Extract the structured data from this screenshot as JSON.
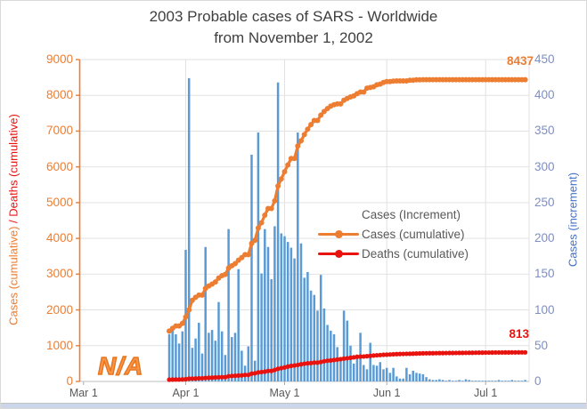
{
  "widget": {
    "background": "#FFFFFF",
    "border_color": "#D9D9D9",
    "bottom_edge_color": "#CCD6EA"
  },
  "chart_data": {
    "type": "bar",
    "title_line1": "2003 Probable cases of SARS - Worldwide",
    "title_line2": "from November 1, 2002",
    "left_axis": {
      "title_cases": "Cases (cumulative)",
      "title_separator": " / ",
      "title_deaths": "Deaths (cumulative)",
      "min": 0,
      "max": 9000,
      "ticks": [
        0,
        1000,
        2000,
        3000,
        4000,
        5000,
        6000,
        7000,
        8000,
        9000
      ],
      "tick_color": "#ED7D31"
    },
    "right_axis": {
      "title": "Cases (increment)",
      "min": 0,
      "max": 450,
      "ticks": [
        0,
        50,
        100,
        150,
        200,
        250,
        300,
        350,
        400,
        450
      ],
      "tick_color": "#7E8EC4",
      "title_color": "#4472C4"
    },
    "x_axis": {
      "tick_labels": [
        "Mar 1",
        "Apr 1",
        "May 1",
        "Jun 1",
        "Jul 1"
      ],
      "ticks": [
        {
          "label": "Mar 1",
          "day": -26,
          "grid": false
        },
        {
          "label": "Apr 1",
          "day": 5,
          "grid": true
        },
        {
          "label": "May 1",
          "day": 35,
          "grid": true
        },
        {
          "label": "Jun 1",
          "day": 66,
          "grid": true
        },
        {
          "label": "Jul 1",
          "day": 96,
          "grid": true
        }
      ]
    },
    "grid_color": "#E2E2E2",
    "dates": [
      "Mar 27",
      "Mar 28",
      "Mar 29",
      "Mar 30",
      "Mar 31",
      "Apr 1",
      "Apr 2",
      "Apr 3",
      "Apr 4",
      "Apr 5",
      "Apr 6",
      "Apr 7",
      "Apr 8",
      "Apr 9",
      "Apr 10",
      "Apr 11",
      "Apr 12",
      "Apr 13",
      "Apr 14",
      "Apr 15",
      "Apr 16",
      "Apr 17",
      "Apr 18",
      "Apr 19",
      "Apr 20",
      "Apr 21",
      "Apr 22",
      "Apr 23",
      "Apr 24",
      "Apr 25",
      "Apr 26",
      "Apr 27",
      "Apr 28",
      "Apr 29",
      "Apr 30",
      "May 1",
      "May 2",
      "May 3",
      "May 4",
      "May 5",
      "May 6",
      "May 7",
      "May 8",
      "May 9",
      "May 10",
      "May 11",
      "May 12",
      "May 13",
      "May 14",
      "May 15",
      "May 16",
      "May 17",
      "May 18",
      "May 19",
      "May 20",
      "May 21",
      "May 22",
      "May 23",
      "May 24",
      "May 25",
      "May 26",
      "May 27",
      "May 28",
      "May 29",
      "May 30",
      "May 31",
      "Jun 1",
      "Jun 2",
      "Jun 3",
      "Jun 4",
      "Jun 5",
      "Jun 6",
      "Jun 7",
      "Jun 8",
      "Jun 9",
      "Jun 10",
      "Jun 11",
      "Jun 12",
      "Jun 13",
      "Jun 14",
      "Jun 15",
      "Jun 16",
      "Jun 17",
      "Jun 18",
      "Jun 19",
      "Jun 20",
      "Jun 21",
      "Jun 22",
      "Jun 23",
      "Jun 24",
      "Jun 25",
      "Jun 26",
      "Jun 27",
      "Jun 28",
      "Jun 29",
      "Jun 30",
      "Jul 1",
      "Jul 2",
      "Jul 3",
      "Jul 4",
      "Jul 5",
      "Jul 6",
      "Jul 7",
      "Jul 8",
      "Jul 9",
      "Jul 10",
      "Jul 11",
      "Jul 12",
      "Jul 13"
    ],
    "series": [
      {
        "name": "Cases (Increment)",
        "kind": "bar",
        "axis": "right",
        "color": "#5B9BD5",
        "values": [
          66,
          76,
          66,
          53,
          70,
          184,
          424,
          47,
          60,
          82,
          39,
          188,
          68,
          72,
          57,
          111,
          70,
          37,
          213,
          62,
          68,
          157,
          43,
          22,
          49,
          317,
          29,
          348,
          151,
          213,
          188,
          143,
          217,
          418,
          207,
          203,
          195,
          187,
          172,
          348,
          193,
          145,
          153,
          127,
          121,
          99,
          149,
          102,
          79,
          71,
          66,
          48,
          31,
          99,
          85,
          50,
          25,
          35,
          68,
          23,
          17,
          54,
          23,
          22,
          27,
          17,
          19,
          12,
          19,
          7,
          4,
          4,
          19,
          10,
          15,
          12,
          11,
          10,
          6,
          3,
          2,
          2,
          3,
          2,
          1,
          2,
          1,
          1,
          2,
          1,
          3,
          2,
          1,
          1,
          1,
          1,
          1,
          1,
          1,
          1,
          2,
          1,
          1,
          1,
          2,
          1,
          1,
          1,
          2
        ]
      },
      {
        "name": "Cases (cumulative)",
        "kind": "line",
        "axis": "left",
        "color": "#ED7D31",
        "end_label": "8437",
        "values": [
          1408,
          1485,
          1550,
          1550,
          1622,
          1804,
          2000,
          2270,
          2353,
          2416,
          2416,
          2601,
          2671,
          2722,
          2781,
          2890,
          2960,
          2992,
          3169,
          3235,
          3293,
          3389,
          3461,
          3547,
          3547,
          3861,
          3947,
          4288,
          4439,
          4649,
          4836,
          4836,
          5050,
          5462,
          5663,
          5865,
          6054,
          6234,
          6234,
          6583,
          6727,
          6903,
          7053,
          7183,
          7296,
          7296,
          7447,
          7548,
          7628,
          7699,
          7739,
          7761,
          7761,
          7864,
          7911,
          7956,
          7983,
          8046,
          8094,
          8094,
          8202,
          8221,
          8240,
          8295,
          8314,
          8360,
          8384,
          8384,
          8398,
          8404,
          8403,
          8404,
          8404,
          8421,
          8421,
          8435,
          8435,
          8436,
          8437,
          8437,
          8437,
          8437,
          8437,
          8437,
          8437,
          8437,
          8437,
          8437,
          8437,
          8437,
          8437,
          8437,
          8437,
          8437,
          8437,
          8437,
          8437,
          8437,
          8437,
          8437,
          8437,
          8437,
          8437,
          8437,
          8437,
          8437,
          8437,
          8437,
          8437
        ]
      },
      {
        "name": "Deaths (cumulative)",
        "kind": "line",
        "axis": "left",
        "color": "#E8130F",
        "end_label": "813",
        "values": [
          49,
          53,
          54,
          55,
          58,
          62,
          78,
          79,
          81,
          89,
          89,
          98,
          103,
          106,
          111,
          116,
          119,
          121,
          144,
          154,
          159,
          165,
          170,
          182,
          182,
          217,
          229,
          251,
          263,
          274,
          293,
          293,
          321,
          353,
          372,
          391,
          417,
          435,
          446,
          461,
          478,
          495,
          506,
          514,
          526,
          526,
          542,
          564,
          580,
          587,
          600,
          612,
          623,
          638,
          648,
          662,
          674,
          689,
          694,
          698,
          706,
          715,
          725,
          732,
          738,
          745,
          749,
          754,
          759,
          764,
          767,
          769,
          772,
          774,
          777,
          780,
          783,
          786,
          788,
          789,
          790,
          791,
          792,
          793,
          794,
          795,
          796,
          797,
          798,
          799,
          800,
          801,
          802,
          803,
          804,
          805,
          806,
          807,
          808,
          809,
          810,
          810,
          811,
          811,
          812,
          812,
          813,
          813,
          813
        ]
      }
    ],
    "legend_position": "middle-right",
    "annotations": {
      "watermark": "N/A"
    }
  }
}
